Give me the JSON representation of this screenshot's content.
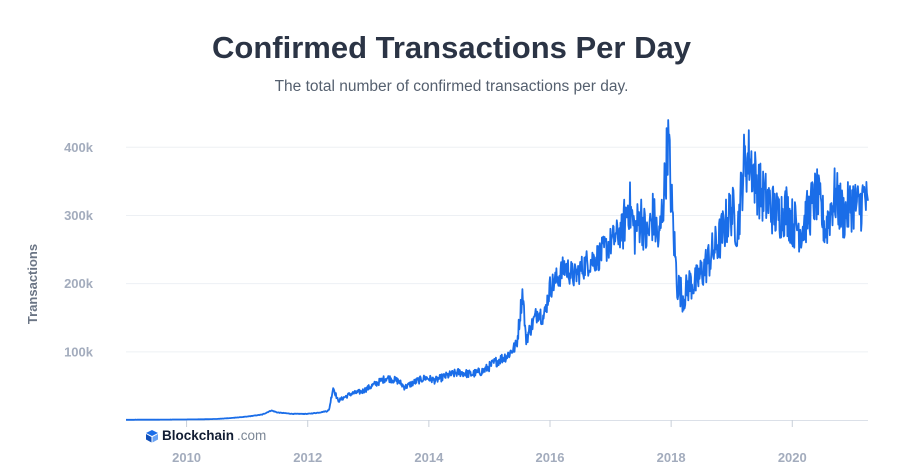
{
  "header": {
    "title": "Confirmed Transactions Per Day",
    "subtitle": "The total number of confirmed transactions per day."
  },
  "brand": {
    "name": "Blockchain",
    "domain": ".com",
    "icon": "blockchain-logo-icon"
  },
  "colors": {
    "line": "#1a6de8",
    "title": "#2b3445",
    "tick": "#a3acbd",
    "grid": "#edf0f4"
  },
  "chart_data": {
    "type": "line",
    "title": "Confirmed Transactions Per Day",
    "subtitle": "The total number of confirmed transactions per day.",
    "xlabel": "",
    "ylabel": "Transactions",
    "xlim": [
      2009.0,
      2021.25
    ],
    "ylim": [
      0,
      440000
    ],
    "x_ticks": [
      {
        "value": 2010,
        "label": "2010"
      },
      {
        "value": 2012,
        "label": "2012"
      },
      {
        "value": 2014,
        "label": "2014"
      },
      {
        "value": 2016,
        "label": "2016"
      },
      {
        "value": 2018,
        "label": "2018"
      },
      {
        "value": 2020,
        "label": "2020"
      }
    ],
    "y_ticks": [
      {
        "value": 100000,
        "label": "100k"
      },
      {
        "value": 200000,
        "label": "200k"
      },
      {
        "value": 300000,
        "label": "300k"
      },
      {
        "value": 400000,
        "label": "400k"
      }
    ],
    "grid": true,
    "legend": "none",
    "series": [
      {
        "x": [
          2009.0,
          2009.5,
          2010.0,
          2010.25,
          2010.5,
          2010.75,
          2011.0,
          2011.25,
          2011.4,
          2011.5,
          2011.75,
          2012.0,
          2012.2,
          2012.35,
          2012.42,
          2012.5,
          2012.7,
          2012.9,
          2013.1,
          2013.3,
          2013.5,
          2013.6,
          2013.8,
          2013.95,
          2014.1,
          2014.3,
          2014.5,
          2014.7,
          2014.9,
          2015.1,
          2015.3,
          2015.45,
          2015.55,
          2015.6,
          2015.8,
          2015.9,
          2016.0,
          2016.1,
          2016.25,
          2016.4,
          2016.6,
          2016.8,
          2017.0,
          2017.2,
          2017.3,
          2017.4,
          2017.5,
          2017.6,
          2017.7,
          2017.8,
          2017.9,
          2017.95,
          2018.0,
          2018.05,
          2018.1,
          2018.2,
          2018.3,
          2018.4,
          2018.5,
          2018.65,
          2018.8,
          2019.0,
          2019.1,
          2019.2,
          2019.3,
          2019.4,
          2019.5,
          2019.6,
          2019.75,
          2019.9,
          2020.0,
          2020.15,
          2020.25,
          2020.4,
          2020.55,
          2020.7,
          2020.85,
          2021.0,
          2021.1,
          2021.2,
          2021.25
        ],
        "values": [
          300,
          500,
          800,
          1000,
          1500,
          3000,
          5000,
          8000,
          14000,
          11000,
          9000,
          9000,
          11000,
          14000,
          48000,
          28000,
          38000,
          42000,
          52000,
          62000,
          57000,
          48000,
          57000,
          62000,
          58000,
          65000,
          70000,
          67000,
          72000,
          85000,
          95000,
          110000,
          190000,
          118000,
          160000,
          150000,
          195000,
          205000,
          225000,
          210000,
          230000,
          240000,
          260000,
          280000,
          320000,
          275000,
          300000,
          265000,
          300000,
          260000,
          350000,
          420000,
          330000,
          260000,
          200000,
          180000,
          200000,
          200000,
          215000,
          240000,
          265000,
          310000,
          280000,
          375000,
          385000,
          350000,
          330000,
          320000,
          300000,
          310000,
          290000,
          280000,
          300000,
          330000,
          280000,
          330000,
          300000,
          320000,
          310000,
          330000,
          300000
        ]
      }
    ]
  }
}
